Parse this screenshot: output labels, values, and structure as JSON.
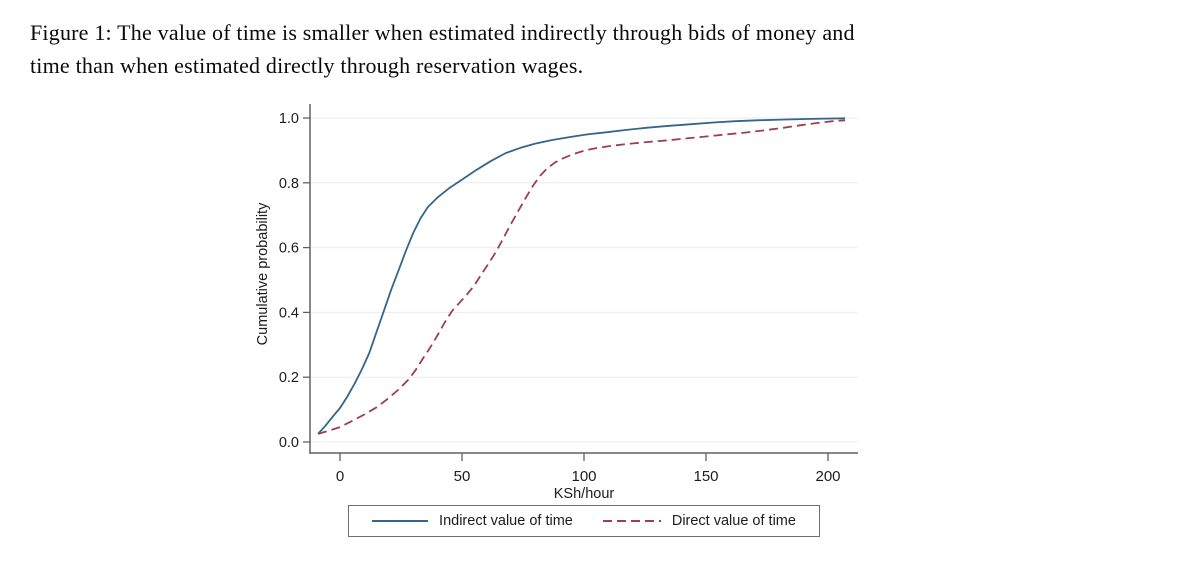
{
  "figure": {
    "caption_line1": "Figure 1: The value of time is smaller when estimated indirectly through bids of money and",
    "caption_line2": "time than when estimated directly through reservation wages."
  },
  "chart_data": {
    "type": "line",
    "title": "",
    "xlabel": "KSh/hour",
    "ylabel": "Cumulative probability",
    "xlim": [
      -13,
      212
    ],
    "ylim": [
      0,
      1.04
    ],
    "grid": "horizontal",
    "legend_position": "bottom",
    "axis_color": "#606060",
    "grid_color": "#ebebeb",
    "tick_label_color": "#1c1c1c",
    "x_ticks": [
      {
        "v": 0,
        "label": "0"
      },
      {
        "v": 50,
        "label": "50"
      },
      {
        "v": 100,
        "label": "100"
      },
      {
        "v": 150,
        "label": "150"
      },
      {
        "v": 200,
        "label": "200"
      }
    ],
    "y_ticks": [
      {
        "v": 0.0,
        "label": "0.0"
      },
      {
        "v": 0.2,
        "label": "0.2"
      },
      {
        "v": 0.4,
        "label": "0.4"
      },
      {
        "v": 0.6,
        "label": "0.6"
      },
      {
        "v": 0.8,
        "label": "0.8"
      },
      {
        "v": 1.0,
        "label": "1.0"
      }
    ],
    "series": [
      {
        "key": "indirect",
        "name": "Indirect value of time",
        "style": "solid",
        "color": "#35658c",
        "points": [
          [
            -9,
            0.025
          ],
          [
            -6,
            0.05
          ],
          [
            -3,
            0.078
          ],
          [
            0,
            0.105
          ],
          [
            3,
            0.14
          ],
          [
            6,
            0.18
          ],
          [
            9,
            0.225
          ],
          [
            12,
            0.275
          ],
          [
            15,
            0.34
          ],
          [
            18,
            0.405
          ],
          [
            21,
            0.47
          ],
          [
            24,
            0.53
          ],
          [
            27,
            0.59
          ],
          [
            30,
            0.645
          ],
          [
            33,
            0.69
          ],
          [
            36,
            0.725
          ],
          [
            40,
            0.755
          ],
          [
            45,
            0.785
          ],
          [
            50,
            0.81
          ],
          [
            56,
            0.84
          ],
          [
            62,
            0.868
          ],
          [
            68,
            0.892
          ],
          [
            74,
            0.908
          ],
          [
            80,
            0.921
          ],
          [
            87,
            0.932
          ],
          [
            94,
            0.941
          ],
          [
            101,
            0.949
          ],
          [
            109,
            0.956
          ],
          [
            117,
            0.963
          ],
          [
            126,
            0.97
          ],
          [
            135,
            0.976
          ],
          [
            144,
            0.981
          ],
          [
            153,
            0.986
          ],
          [
            162,
            0.99
          ],
          [
            171,
            0.993
          ],
          [
            181,
            0.995
          ],
          [
            191,
            0.997
          ],
          [
            199,
            0.998
          ],
          [
            207,
            0.999
          ]
        ]
      },
      {
        "key": "direct",
        "name": "Direct value of time",
        "style": "dashed",
        "color": "#9c3f50",
        "points": [
          [
            -9,
            0.025
          ],
          [
            -4,
            0.036
          ],
          [
            0,
            0.046
          ],
          [
            5,
            0.065
          ],
          [
            10,
            0.085
          ],
          [
            15,
            0.107
          ],
          [
            19,
            0.13
          ],
          [
            24,
            0.162
          ],
          [
            28,
            0.192
          ],
          [
            31,
            0.222
          ],
          [
            34,
            0.258
          ],
          [
            37,
            0.292
          ],
          [
            40,
            0.33
          ],
          [
            43,
            0.37
          ],
          [
            46,
            0.405
          ],
          [
            49,
            0.43
          ],
          [
            52,
            0.455
          ],
          [
            55,
            0.483
          ],
          [
            58,
            0.518
          ],
          [
            61,
            0.552
          ],
          [
            64,
            0.588
          ],
          [
            67,
            0.63
          ],
          [
            70,
            0.672
          ],
          [
            73,
            0.712
          ],
          [
            76,
            0.752
          ],
          [
            79,
            0.79
          ],
          [
            82,
            0.822
          ],
          [
            85,
            0.845
          ],
          [
            88,
            0.862
          ],
          [
            91,
            0.874
          ],
          [
            95,
            0.887
          ],
          [
            100,
            0.899
          ],
          [
            105,
            0.907
          ],
          [
            111,
            0.914
          ],
          [
            118,
            0.92
          ],
          [
            126,
            0.926
          ],
          [
            134,
            0.931
          ],
          [
            142,
            0.937
          ],
          [
            150,
            0.943
          ],
          [
            158,
            0.949
          ],
          [
            166,
            0.955
          ],
          [
            174,
            0.962
          ],
          [
            182,
            0.97
          ],
          [
            190,
            0.979
          ],
          [
            196,
            0.985
          ],
          [
            202,
            0.99
          ],
          [
            207,
            0.993
          ]
        ]
      }
    ]
  }
}
